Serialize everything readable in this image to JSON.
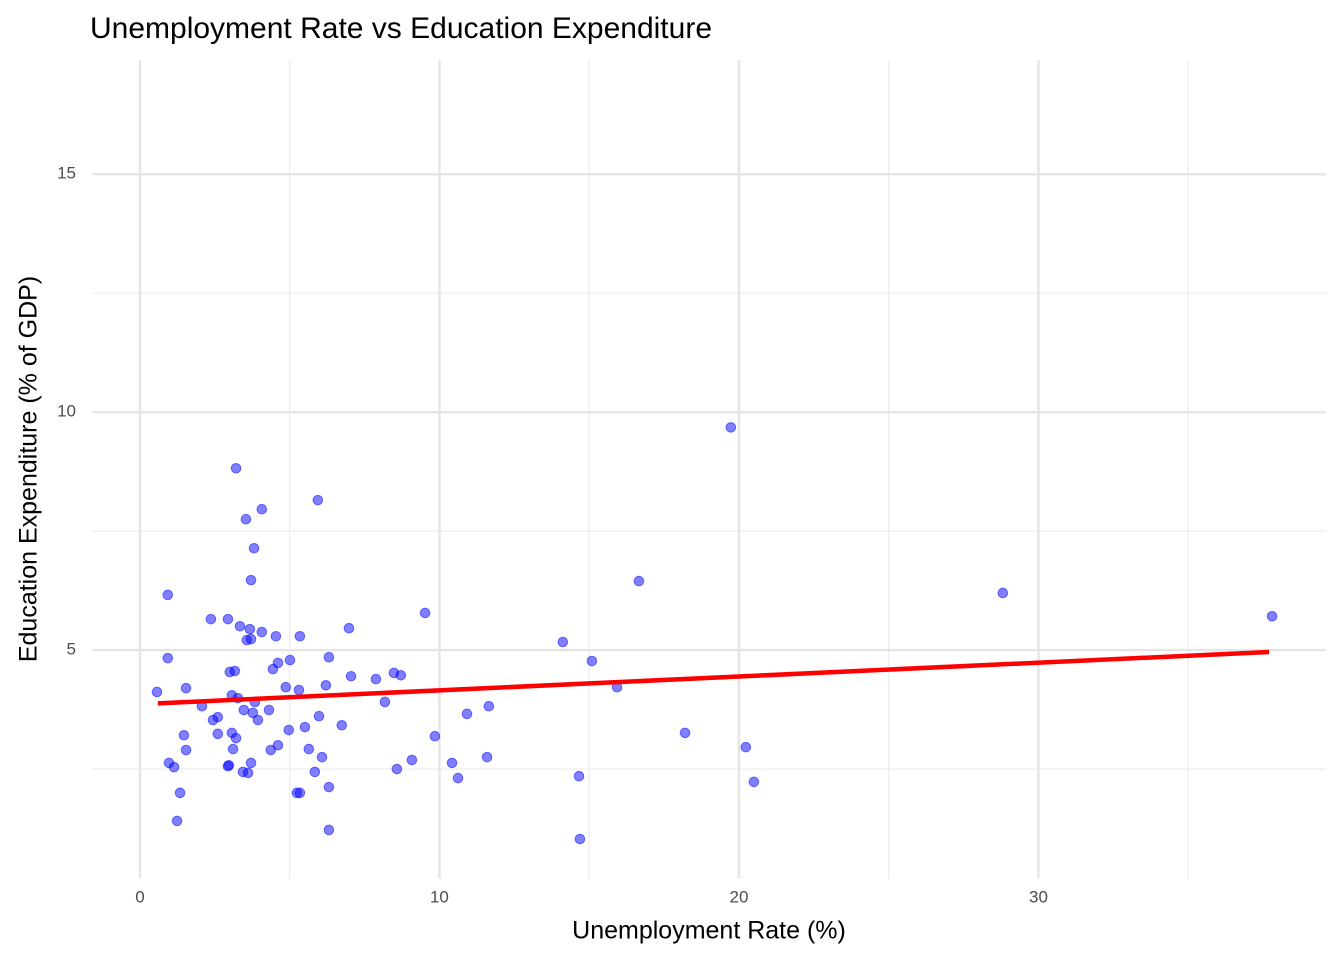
{
  "chart_data": {
    "type": "scatter",
    "title": "Unemployment Rate vs Education Expenditure",
    "xlabel": "Unemployment Rate (%)",
    "ylabel": "Education Expenditure (% of GDP)",
    "x": [
      0.57,
      0.93,
      0.93,
      0.97,
      1.14,
      1.24,
      1.34,
      1.47,
      1.54,
      1.54,
      2.07,
      2.37,
      2.44,
      2.6,
      2.6,
      2.94,
      2.94,
      2.97,
      3.0,
      3.07,
      3.07,
      3.11,
      3.17,
      3.21,
      3.21,
      3.27,
      3.34,
      3.44,
      3.47,
      3.54,
      3.57,
      3.61,
      3.67,
      3.71,
      3.71,
      3.71,
      3.77,
      3.81,
      3.84,
      3.94,
      4.07,
      4.07,
      4.31,
      4.37,
      4.44,
      4.54,
      4.61,
      4.61,
      4.87,
      4.97,
      5.01,
      5.24,
      5.31,
      5.34,
      5.34,
      5.51,
      5.64,
      5.84,
      5.94,
      5.98,
      6.08,
      6.21,
      6.31,
      6.31,
      6.31,
      6.74,
      6.98,
      7.05,
      7.88,
      8.18,
      8.48,
      8.58,
      8.71,
      9.08,
      9.52,
      9.85,
      10.42,
      10.62,
      10.92,
      11.59,
      11.65,
      14.12,
      14.66,
      14.69,
      15.09,
      15.93,
      16.66,
      18.2,
      19.73,
      20.23,
      20.5,
      28.81,
      37.8
    ],
    "y": [
      4.12,
      6.16,
      4.83,
      2.63,
      2.54,
      1.41,
      2.0,
      3.21,
      4.2,
      2.9,
      3.82,
      5.65,
      3.53,
      3.59,
      3.24,
      5.65,
      2.56,
      2.58,
      4.54,
      4.05,
      3.26,
      2.92,
      4.56,
      8.82,
      3.15,
      3.99,
      5.5,
      2.44,
      3.74,
      7.75,
      5.21,
      2.42,
      5.44,
      6.47,
      5.23,
      2.63,
      3.68,
      7.14,
      3.91,
      3.53,
      7.96,
      5.38,
      3.74,
      2.9,
      4.6,
      5.29,
      4.73,
      3.0,
      4.22,
      3.32,
      4.79,
      2.0,
      4.16,
      2.0,
      5.29,
      3.38,
      2.92,
      2.44,
      8.15,
      3.61,
      2.75,
      4.26,
      2.12,
      1.22,
      4.85,
      3.42,
      5.46,
      4.45,
      4.39,
      3.91,
      4.52,
      2.5,
      4.47,
      2.69,
      5.78,
      3.19,
      2.63,
      2.31,
      3.66,
      2.75,
      3.82,
      5.17,
      2.35,
      1.03,
      4.77,
      4.22,
      6.45,
      3.26,
      9.68,
      2.96,
      2.23,
      6.2,
      5.71
    ],
    "color": "blue",
    "opacity": 0.5,
    "trend": {
      "x": [
        0.6,
        37.7
      ],
      "y": [
        3.88,
        4.96
      ],
      "color": "red"
    },
    "xlim": [
      -1.6,
      39.6
    ],
    "ylim": [
      0.2,
      17.4
    ],
    "xticks": [
      0,
      10,
      20,
      30
    ],
    "yticks": [
      5,
      10,
      15
    ],
    "grid": true
  }
}
